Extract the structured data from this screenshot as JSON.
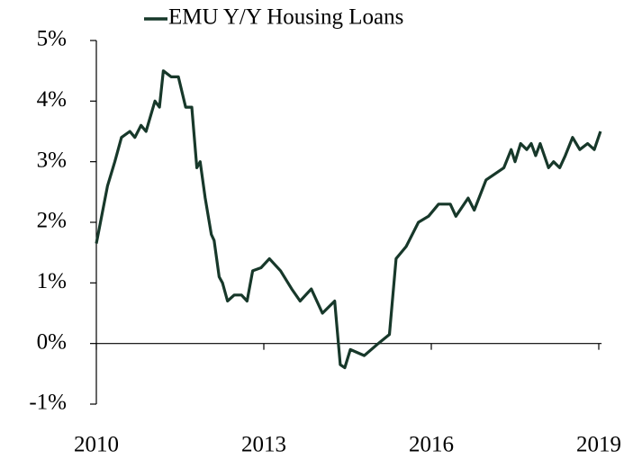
{
  "chart_data": {
    "type": "line",
    "x": [
      2010.0,
      2010.2,
      2010.33,
      2010.45,
      2010.6,
      2010.69,
      2010.8,
      2010.89,
      2011.05,
      2011.13,
      2011.2,
      2011.34,
      2011.47,
      2011.6,
      2011.71,
      2011.8,
      2011.86,
      2011.95,
      2012.06,
      2012.11,
      2012.2,
      2012.26,
      2012.35,
      2012.47,
      2012.6,
      2012.7,
      2012.8,
      2012.95,
      2013.1,
      2013.3,
      2013.5,
      2013.65,
      2013.85,
      2014.05,
      2014.27,
      2014.37,
      2014.45,
      2014.55,
      2014.8,
      2015.05,
      2015.25,
      2015.37,
      2015.55,
      2015.77,
      2015.95,
      2016.13,
      2016.34,
      2016.44,
      2016.66,
      2016.77,
      2016.98,
      2017.3,
      2017.43,
      2017.5,
      2017.6,
      2017.71,
      2017.79,
      2017.87,
      2017.95,
      2018.1,
      2018.19,
      2018.3,
      2018.4,
      2018.53,
      2018.66,
      2018.8,
      2018.92,
      2019.03
    ],
    "series": [
      {
        "name": "EMU Y/Y Housing Loans",
        "color": "#17382a",
        "values": [
          1.65,
          2.6,
          3.0,
          3.4,
          3.5,
          3.4,
          3.6,
          3.5,
          4.0,
          3.9,
          4.5,
          4.4,
          4.4,
          3.9,
          3.9,
          2.9,
          3.0,
          2.4,
          1.8,
          1.7,
          1.1,
          1.0,
          0.7,
          0.8,
          0.8,
          0.7,
          1.2,
          1.25,
          1.4,
          1.2,
          0.9,
          0.7,
          0.9,
          0.5,
          0.7,
          -0.35,
          -0.4,
          -0.1,
          -0.2,
          0.0,
          0.15,
          1.4,
          1.6,
          2.0,
          2.1,
          2.3,
          2.3,
          2.1,
          2.4,
          2.2,
          2.7,
          2.9,
          3.2,
          3.0,
          3.3,
          3.2,
          3.3,
          3.1,
          3.3,
          2.9,
          3.0,
          2.9,
          3.1,
          3.4,
          3.2,
          3.3,
          3.2,
          3.5
        ]
      }
    ],
    "xlim": [
      2010,
      2019.05
    ],
    "xticks": [
      2010,
      2013,
      2016,
      2019
    ],
    "ylim": [
      -1,
      5
    ],
    "yticks": [
      {
        "value": -1,
        "label": "-1%"
      },
      {
        "value": 0,
        "label": "0%"
      },
      {
        "value": 1,
        "label": "1%"
      },
      {
        "value": 2,
        "label": "2%"
      },
      {
        "value": 3,
        "label": "3%"
      },
      {
        "value": 4,
        "label": "4%"
      },
      {
        "value": 5,
        "label": "5%"
      }
    ],
    "legend": "top"
  }
}
